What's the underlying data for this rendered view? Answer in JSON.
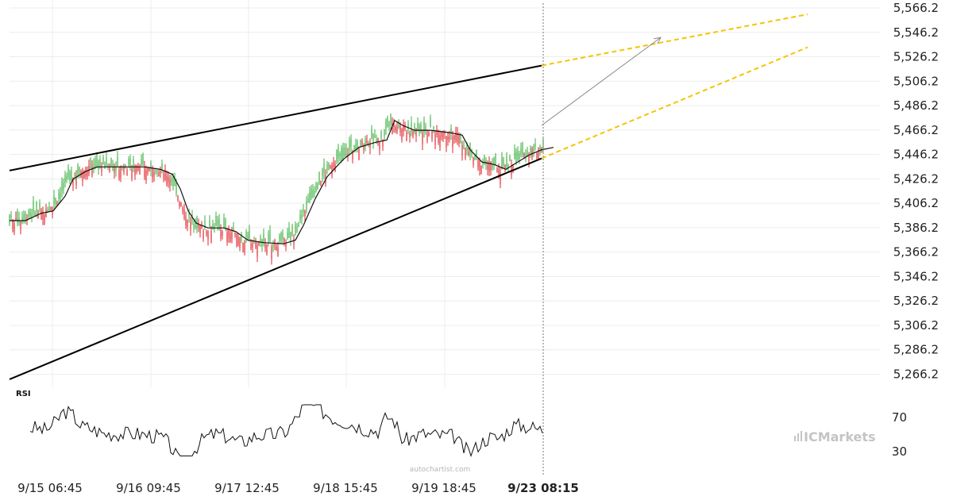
{
  "chart_data": {
    "type": "candlestick",
    "price_panel": {
      "ylim": [
        5256.2,
        5566.2
      ],
      "y_ticks": [
        "5,566.2",
        "5,546.2",
        "5,526.2",
        "5,506.2",
        "5,486.2",
        "5,466.2",
        "5,446.2",
        "5,426.2",
        "5,406.2",
        "5,386.2",
        "5,366.2",
        "5,346.2",
        "5,326.2",
        "5,306.2",
        "5,286.2",
        "5,266.2"
      ],
      "grid": true,
      "approx_moving_average": [
        [
          0,
          5392
        ],
        [
          20,
          5392
        ],
        [
          40,
          5398
        ],
        [
          55,
          5400
        ],
        [
          70,
          5412
        ],
        [
          80,
          5426
        ],
        [
          95,
          5432
        ],
        [
          110,
          5436
        ],
        [
          130,
          5436
        ],
        [
          150,
          5436
        ],
        [
          170,
          5436
        ],
        [
          190,
          5434
        ],
        [
          205,
          5430
        ],
        [
          215,
          5418
        ],
        [
          225,
          5400
        ],
        [
          235,
          5390
        ],
        [
          250,
          5386
        ],
        [
          270,
          5386
        ],
        [
          285,
          5383
        ],
        [
          300,
          5376
        ],
        [
          320,
          5374
        ],
        [
          345,
          5373
        ],
        [
          360,
          5376
        ],
        [
          370,
          5388
        ],
        [
          385,
          5410
        ],
        [
          400,
          5428
        ],
        [
          420,
          5442
        ],
        [
          440,
          5452
        ],
        [
          460,
          5456
        ],
        [
          475,
          5458
        ],
        [
          485,
          5474
        ],
        [
          495,
          5470
        ],
        [
          510,
          5466
        ],
        [
          530,
          5466
        ],
        [
          555,
          5464
        ],
        [
          570,
          5462
        ],
        [
          580,
          5450
        ],
        [
          595,
          5440
        ],
        [
          610,
          5438
        ],
        [
          625,
          5434
        ],
        [
          640,
          5440
        ],
        [
          655,
          5446
        ],
        [
          670,
          5450
        ],
        [
          685,
          5452
        ]
      ],
      "wedge_upper": {
        "start": [
          0,
          5433
        ],
        "end": [
          670,
          5519
        ]
      },
      "wedge_lower": {
        "start": [
          0,
          5262
        ],
        "end": [
          670,
          5443
        ]
      },
      "projection_upper": {
        "start": [
          670,
          5519
        ],
        "end": [
          1005,
          5561
        ]
      },
      "projection_lower": {
        "start": [
          670,
          5443
        ],
        "end": [
          1005,
          5534
        ]
      },
      "forecast_arrow": {
        "start": [
          670,
          5470
        ],
        "end": [
          820,
          5542
        ]
      }
    },
    "rsi_panel": {
      "label": "RSI",
      "y_ticks": [
        "70",
        "30"
      ]
    },
    "x_ticks": [
      "9/15 06:45",
      "9/16 09:45",
      "9/17 12:45",
      "9/18 15:45",
      "9/19 18:45",
      "9/23 08:15"
    ],
    "current_x_tick": "9/23 08:15",
    "colors": {
      "up": "#3cb043",
      "down": "#e0262b",
      "wedge": "#000000",
      "projection": "#f5c400",
      "grid": "#ececec"
    }
  },
  "watermark": "autochartist.com",
  "brand": {
    "prefix": "IC",
    "suffix": "Markets"
  }
}
